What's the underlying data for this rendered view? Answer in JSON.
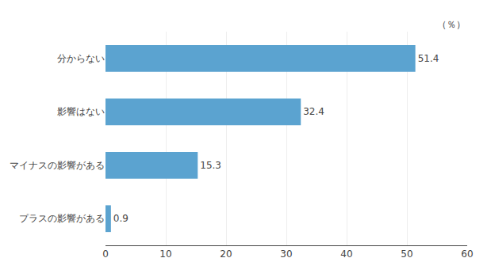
{
  "chart_data": {
    "type": "bar",
    "orientation": "horizontal",
    "categories": [
      "分からない",
      "影響はない",
      "マイナスの影響がある",
      "プラスの影響がある"
    ],
    "values": [
      51.4,
      32.4,
      15.3,
      0.9
    ],
    "color": "#5BA3D0",
    "xlim": [
      0,
      60
    ],
    "xticks": [
      0,
      10,
      20,
      30,
      40,
      50,
      60
    ],
    "grid": true,
    "data_labels": true,
    "annotations": [
      "（％）"
    ]
  }
}
